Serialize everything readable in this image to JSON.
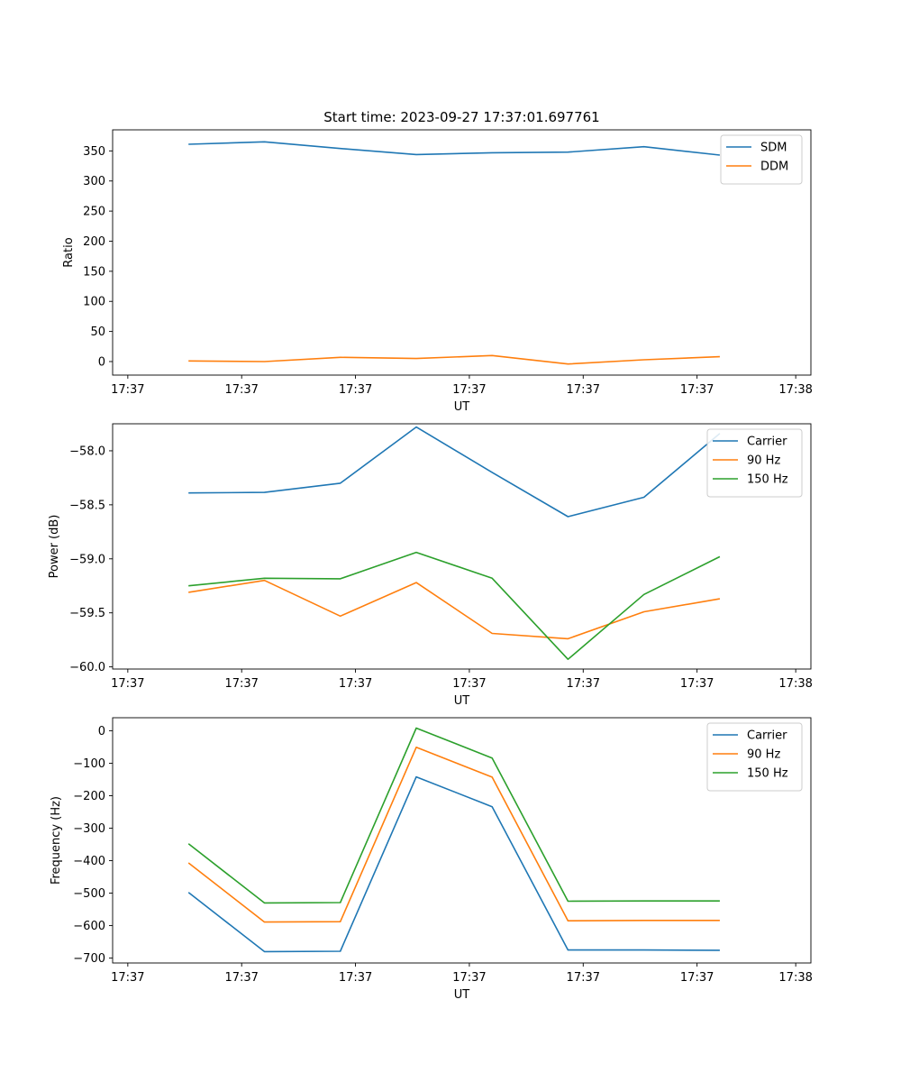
{
  "chart_data": [
    {
      "type": "line",
      "title": "Start time: 2023-09-27 17:37:01.697761",
      "xlabel": "UT",
      "ylabel": "Ratio",
      "x_tick_labels": [
        "17:37",
        "17:37",
        "17:37",
        "17:37",
        "17:37",
        "17:37",
        "17:38"
      ],
      "y_ticks": [
        0,
        50,
        100,
        150,
        200,
        250,
        300,
        350
      ],
      "ylim": [
        -22.5,
        385
      ],
      "x": [
        1,
        2,
        3,
        4,
        5,
        6,
        7,
        8
      ],
      "xlim": [
        0,
        9.2
      ],
      "x_tick_positions": [
        0.2,
        1.7,
        3.2,
        4.7,
        6.2,
        7.7,
        9.0
      ],
      "legend": "upper right",
      "series": [
        {
          "name": "SDM",
          "color": "#1f77b4",
          "values": [
            361,
            365,
            354,
            344,
            347,
            348,
            357,
            343
          ]
        },
        {
          "name": "DDM",
          "color": "#ff7f0e",
          "values": [
            1,
            0,
            7,
            5,
            10,
            -4,
            3,
            8
          ]
        }
      ]
    },
    {
      "type": "line",
      "title": "",
      "xlabel": "UT",
      "ylabel": "Power (dB)",
      "x_tick_labels": [
        "17:37",
        "17:37",
        "17:37",
        "17:37",
        "17:37",
        "17:37",
        "17:38"
      ],
      "y_ticks": [
        -58.0,
        -58.5,
        -59.0,
        -59.5,
        -60.0
      ],
      "ylim": [
        -60.02,
        -57.75
      ],
      "x": [
        1,
        2,
        3,
        4,
        5,
        6,
        7,
        8
      ],
      "xlim": [
        0,
        9.2
      ],
      "x_tick_positions": [
        0.2,
        1.7,
        3.2,
        4.7,
        6.2,
        7.7,
        9.0
      ],
      "legend": "upper right",
      "series": [
        {
          "name": "Carrier",
          "color": "#1f77b4",
          "values": [
            -58.39,
            -58.385,
            -58.3,
            -57.78,
            -58.2,
            -58.61,
            -58.43,
            -57.84
          ]
        },
        {
          "name": "90 Hz",
          "color": "#ff7f0e",
          "values": [
            -59.31,
            -59.2,
            -59.53,
            -59.22,
            -59.69,
            -59.74,
            -59.49,
            -59.37
          ]
        },
        {
          "name": "150 Hz",
          "color": "#2ca02c",
          "values": [
            -59.25,
            -59.18,
            -59.185,
            -58.94,
            -59.18,
            -59.93,
            -59.33,
            -58.98
          ]
        }
      ]
    },
    {
      "type": "line",
      "title": "",
      "xlabel": "UT",
      "ylabel": "Frequency (Hz)",
      "x_tick_labels": [
        "17:37",
        "17:37",
        "17:37",
        "17:37",
        "17:37",
        "17:37",
        "17:38"
      ],
      "y_ticks": [
        0,
        -100,
        -200,
        -300,
        -400,
        -500,
        -600,
        -700
      ],
      "ylim": [
        -715,
        40
      ],
      "x": [
        1,
        2,
        3,
        4,
        5,
        6,
        7,
        8
      ],
      "xlim": [
        0,
        9.2
      ],
      "x_tick_positions": [
        0.2,
        1.7,
        3.2,
        4.7,
        6.2,
        7.7,
        9.0
      ],
      "legend": "upper right",
      "series": [
        {
          "name": "Carrier",
          "color": "#1f77b4",
          "values": [
            -498,
            -680,
            -679,
            -142,
            -234,
            -675,
            -675,
            -676
          ]
        },
        {
          "name": "90 Hz",
          "color": "#ff7f0e",
          "values": [
            -407,
            -589,
            -588,
            -51,
            -143,
            -585,
            -584,
            -584
          ]
        },
        {
          "name": "150 Hz",
          "color": "#2ca02c",
          "values": [
            -348,
            -530,
            -529,
            8,
            -84,
            -525,
            -524,
            -524
          ]
        }
      ]
    }
  ]
}
